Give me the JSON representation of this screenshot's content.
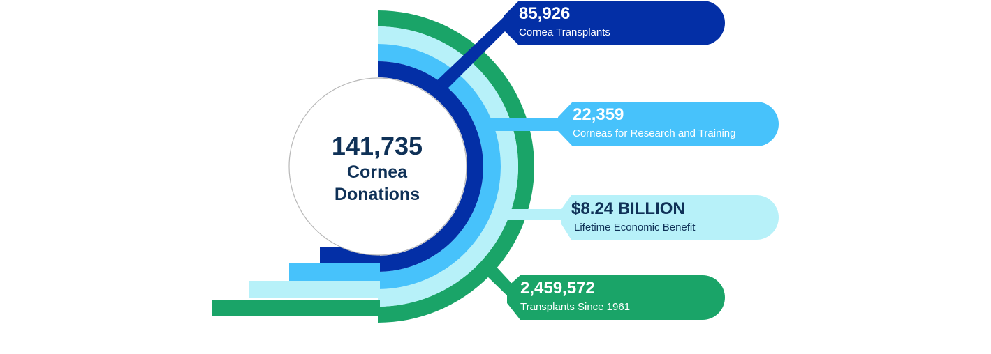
{
  "center": {
    "value": "141,735",
    "label_line1": "Cornea",
    "label_line2": "Donations"
  },
  "stats": [
    {
      "id": "cornea-transplants",
      "value": "85,926",
      "label": "Cornea Transplants",
      "color": "#032fa6",
      "text_color": "#ffffff"
    },
    {
      "id": "research-training",
      "value": "22,359",
      "label": "Corneas for Research and Training",
      "color": "#47c2fb",
      "text_color": "#ffffff"
    },
    {
      "id": "economic-benefit",
      "value": "$8.24 BILLION",
      "label": "Lifetime Economic Benefit",
      "color": "#b7f1f9",
      "text_color": "#0f3157"
    },
    {
      "id": "transplants-since-1961",
      "value": "2,459,572",
      "label": "Transplants Since 1961",
      "color": "#1aa468",
      "text_color": "#ffffff"
    }
  ]
}
